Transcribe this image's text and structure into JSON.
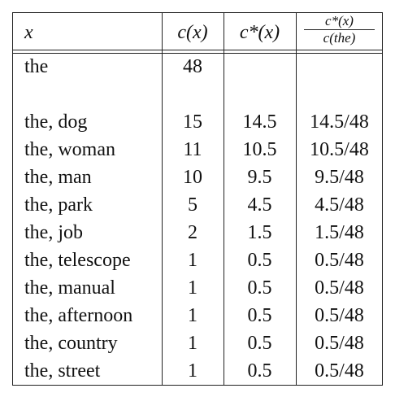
{
  "table": {
    "header": [
      "x",
      "c(x)",
      "c*(x)",
      {
        "numerator": "c*(x)",
        "denominator": "c(the)"
      }
    ],
    "rows": [
      [
        "the",
        "48"
      ],
      [
        "the, dog",
        "15",
        "14.5",
        "14.5/48"
      ],
      [
        "the, woman",
        "11",
        "10.5",
        "10.5/48"
      ],
      [
        "the, man",
        "10",
        "9.5",
        "9.5/48"
      ],
      [
        "the, park",
        "5",
        "4.5",
        "4.5/48"
      ],
      [
        "the, job",
        "2",
        "1.5",
        "1.5/48"
      ],
      [
        "the, telescope",
        "1",
        "0.5",
        "0.5/48"
      ],
      [
        "the, manual",
        "1",
        "0.5",
        "0.5/48"
      ],
      [
        "the, afternoon",
        "1",
        "0.5",
        "0.5/48"
      ],
      [
        "the, country",
        "1",
        "0.5",
        "0.5/48"
      ],
      [
        "the, street",
        "1",
        "0.5",
        "0.5/48"
      ]
    ]
  }
}
